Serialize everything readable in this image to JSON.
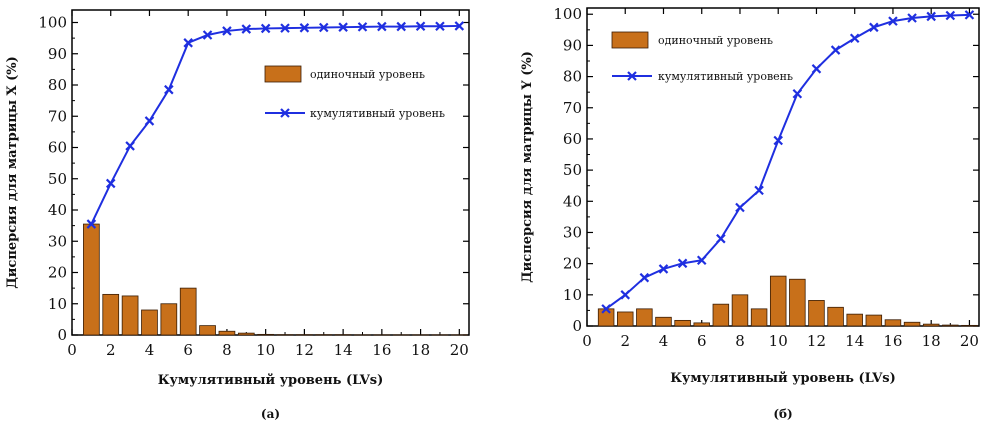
{
  "chart_data": [
    {
      "type": "bar+line",
      "panel_label": "(a)",
      "xlabel": "Кумулятивный уровень (LVs)",
      "ylabel": "Дисперсия для матрицы X (%)",
      "xlim": [
        0,
        20.5
      ],
      "ylim": [
        0,
        104
      ],
      "xticks": [
        0,
        2,
        4,
        6,
        8,
        10,
        12,
        14,
        16,
        18,
        20
      ],
      "yticks": [
        0,
        10,
        20,
        30,
        40,
        50,
        60,
        70,
        80,
        90,
        100
      ],
      "grid": false,
      "legend_position": "right",
      "x": [
        1,
        2,
        3,
        4,
        5,
        6,
        7,
        8,
        9,
        10,
        11,
        12,
        13,
        14,
        15,
        16,
        17,
        18,
        19,
        20
      ],
      "series": [
        {
          "name": "одиночный уровень",
          "kind": "bar",
          "color": "#c8701a",
          "values": [
            35.5,
            13,
            12.5,
            8,
            10,
            15,
            3,
            1.2,
            0.6,
            0.2,
            0.1,
            0.1,
            0.1,
            0.1,
            0.05,
            0.05,
            0.05,
            0.05,
            0.05,
            0.05
          ]
        },
        {
          "name": "кумулятивный уровень",
          "kind": "line",
          "color": "#1f2fe0",
          "values": [
            35.5,
            48.5,
            60.5,
            68.5,
            78.5,
            93.5,
            96,
            97.3,
            97.9,
            98.1,
            98.2,
            98.3,
            98.4,
            98.5,
            98.6,
            98.7,
            98.7,
            98.8,
            98.8,
            98.9
          ]
        }
      ]
    },
    {
      "type": "bar+line",
      "panel_label": "(б)",
      "xlabel": "Кумулятивный уровень (LVs)",
      "ylabel": "Дисперсия для матрицы Y (%)",
      "xlim": [
        0,
        20.5
      ],
      "ylim": [
        0,
        102
      ],
      "xticks": [
        0,
        2,
        4,
        6,
        8,
        10,
        12,
        14,
        16,
        18,
        20
      ],
      "yticks": [
        0,
        10,
        20,
        30,
        40,
        50,
        60,
        70,
        80,
        90,
        100
      ],
      "grid": false,
      "legend_position": "top-left",
      "x": [
        1,
        2,
        3,
        4,
        5,
        6,
        7,
        8,
        9,
        10,
        11,
        12,
        13,
        14,
        15,
        16,
        17,
        18,
        19,
        20
      ],
      "series": [
        {
          "name": "одиночный уровень",
          "kind": "bar",
          "color": "#c8701a",
          "values": [
            5.5,
            4.5,
            5.5,
            2.8,
            1.8,
            1,
            7,
            10,
            5.5,
            16,
            15,
            8.2,
            6,
            3.8,
            3.5,
            2,
            1.2,
            0.6,
            0.3,
            0.2
          ]
        },
        {
          "name": "кумулятивный уровень",
          "kind": "line",
          "color": "#1f2fe0",
          "values": [
            5.5,
            10,
            15.5,
            18.3,
            20.1,
            21.1,
            28,
            38,
            43.5,
            59.5,
            74.5,
            82.5,
            88.5,
            92.3,
            95.8,
            97.8,
            98.8,
            99.3,
            99.6,
            99.8
          ]
        }
      ]
    }
  ]
}
